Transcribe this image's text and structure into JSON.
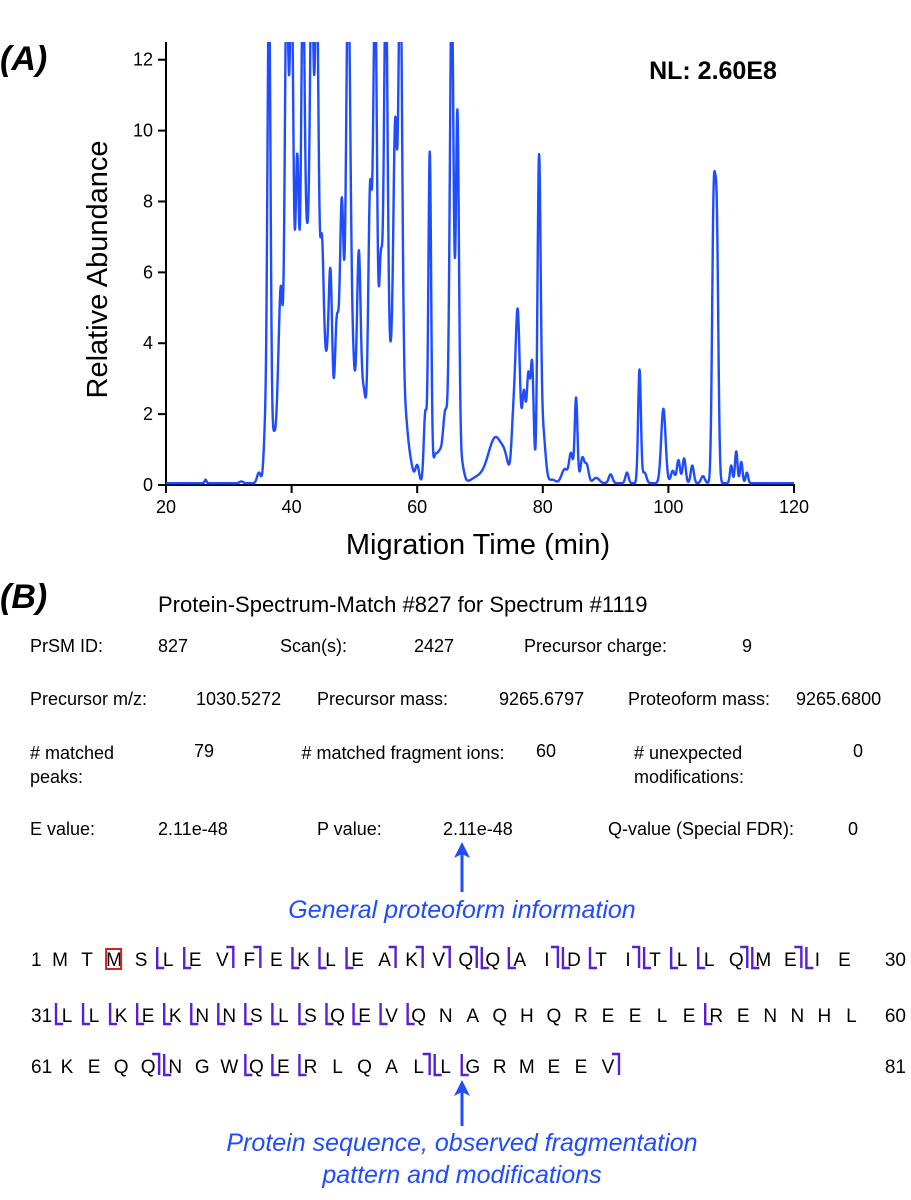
{
  "panel_a_label": "(A)",
  "panel_b_label": "(B)",
  "chart_data": {
    "type": "line",
    "title": "",
    "annotation": "NL: 2.60E8",
    "xlabel": "Migration Time (min)",
    "ylabel": "Relative Abundance",
    "xlim": [
      20,
      120
    ],
    "ylim": [
      0,
      12.5
    ],
    "xticks": [
      20,
      40,
      60,
      80,
      100,
      120
    ],
    "yticks": [
      0,
      2,
      4,
      6,
      8,
      10,
      12
    ],
    "grid": false,
    "color": "#1f4cff",
    "baseline": 0.05,
    "series": [
      {
        "name": "electropherogram",
        "peaks": [
          {
            "x": 26.3,
            "h": 0.1,
            "w": 0.15
          },
          {
            "x": 32.0,
            "h": 0.05,
            "w": 0.3
          },
          {
            "x": 34.8,
            "h": 0.3,
            "w": 0.3
          },
          {
            "x": 35.8,
            "h": 1.4,
            "w": 0.25
          },
          {
            "x": 36.4,
            "h": 14.0,
            "w": 0.25
          },
          {
            "x": 37.2,
            "h": 1.3,
            "w": 0.3
          },
          {
            "x": 37.8,
            "h": 1.6,
            "w": 0.25
          },
          {
            "x": 38.3,
            "h": 5.2,
            "w": 0.3
          },
          {
            "x": 39.2,
            "h": 14.0,
            "w": 0.3
          },
          {
            "x": 40.0,
            "h": 14.0,
            "w": 0.3
          },
          {
            "x": 40.9,
            "h": 9.0,
            "w": 0.3
          },
          {
            "x": 41.8,
            "h": 14.0,
            "w": 0.3
          },
          {
            "x": 42.5,
            "h": 5.5,
            "w": 0.3
          },
          {
            "x": 43.2,
            "h": 14.0,
            "w": 0.3
          },
          {
            "x": 44.0,
            "h": 14.0,
            "w": 0.3
          },
          {
            "x": 44.8,
            "h": 6.0,
            "w": 0.3
          },
          {
            "x": 45.5,
            "h": 3.0,
            "w": 0.4
          },
          {
            "x": 46.2,
            "h": 5.3,
            "w": 0.3
          },
          {
            "x": 47.2,
            "h": 4.5,
            "w": 0.35
          },
          {
            "x": 48.0,
            "h": 7.5,
            "w": 0.3
          },
          {
            "x": 49.0,
            "h": 14.0,
            "w": 0.35
          },
          {
            "x": 49.8,
            "h": 3.0,
            "w": 0.4
          },
          {
            "x": 50.7,
            "h": 6.0,
            "w": 0.3
          },
          {
            "x": 51.5,
            "h": 2.5,
            "w": 0.4
          },
          {
            "x": 52.5,
            "h": 8.0,
            "w": 0.3
          },
          {
            "x": 53.3,
            "h": 14.0,
            "w": 0.3
          },
          {
            "x": 54.2,
            "h": 6.0,
            "w": 0.3
          },
          {
            "x": 55.0,
            "h": 14.0,
            "w": 0.3
          },
          {
            "x": 55.8,
            "h": 3.0,
            "w": 0.35
          },
          {
            "x": 56.5,
            "h": 9.5,
            "w": 0.3
          },
          {
            "x": 57.3,
            "h": 14.0,
            "w": 0.3
          },
          {
            "x": 58.0,
            "h": 2.0,
            "w": 0.5
          },
          {
            "x": 59.0,
            "h": 0.4,
            "w": 0.4
          },
          {
            "x": 60.0,
            "h": 0.5,
            "w": 0.3
          },
          {
            "x": 61.3,
            "h": 2.0,
            "w": 0.25
          },
          {
            "x": 62.0,
            "h": 9.3,
            "w": 0.22
          },
          {
            "x": 62.8,
            "h": 0.6,
            "w": 0.3
          },
          {
            "x": 63.5,
            "h": 0.8,
            "w": 0.4
          },
          {
            "x": 64.5,
            "h": 2.0,
            "w": 0.4
          },
          {
            "x": 65.5,
            "h": 14.0,
            "w": 0.3
          },
          {
            "x": 66.4,
            "h": 10.2,
            "w": 0.25
          },
          {
            "x": 67.0,
            "h": 0.6,
            "w": 0.4
          },
          {
            "x": 69.5,
            "h": 0.15,
            "w": 1.0
          },
          {
            "x": 72.5,
            "h": 1.3,
            "w": 1.2
          },
          {
            "x": 74.0,
            "h": 0.3,
            "w": 0.5
          },
          {
            "x": 75.3,
            "h": 1.5,
            "w": 0.3
          },
          {
            "x": 76.0,
            "h": 4.8,
            "w": 0.35
          },
          {
            "x": 77.0,
            "h": 2.5,
            "w": 0.3
          },
          {
            "x": 77.7,
            "h": 2.8,
            "w": 0.25
          },
          {
            "x": 78.3,
            "h": 3.3,
            "w": 0.25
          },
          {
            "x": 79.4,
            "h": 8.8,
            "w": 0.25
          },
          {
            "x": 80.0,
            "h": 1.5,
            "w": 0.4
          },
          {
            "x": 81.5,
            "h": 0.1,
            "w": 0.5
          },
          {
            "x": 83.5,
            "h": 0.4,
            "w": 0.5
          },
          {
            "x": 84.5,
            "h": 0.8,
            "w": 0.3
          },
          {
            "x": 85.3,
            "h": 2.4,
            "w": 0.22
          },
          {
            "x": 86.3,
            "h": 0.7,
            "w": 0.3
          },
          {
            "x": 87.0,
            "h": 0.5,
            "w": 0.3
          },
          {
            "x": 88.5,
            "h": 0.15,
            "w": 0.5
          },
          {
            "x": 90.8,
            "h": 0.25,
            "w": 0.3
          },
          {
            "x": 93.4,
            "h": 0.3,
            "w": 0.25
          },
          {
            "x": 95.4,
            "h": 3.2,
            "w": 0.22
          },
          {
            "x": 96.2,
            "h": 0.3,
            "w": 0.3
          },
          {
            "x": 99.2,
            "h": 2.1,
            "w": 0.35
          },
          {
            "x": 100.7,
            "h": 0.35,
            "w": 0.3
          },
          {
            "x": 101.6,
            "h": 0.65,
            "w": 0.25
          },
          {
            "x": 102.5,
            "h": 0.7,
            "w": 0.25
          },
          {
            "x": 103.8,
            "h": 0.5,
            "w": 0.25
          },
          {
            "x": 105.5,
            "h": 0.2,
            "w": 0.3
          },
          {
            "x": 107.2,
            "h": 7.4,
            "w": 0.25
          },
          {
            "x": 107.7,
            "h": 7.0,
            "w": 0.25
          },
          {
            "x": 110.0,
            "h": 0.5,
            "w": 0.2
          },
          {
            "x": 110.8,
            "h": 0.9,
            "w": 0.2
          },
          {
            "x": 111.6,
            "h": 0.6,
            "w": 0.2
          },
          {
            "x": 112.5,
            "h": 0.3,
            "w": 0.2
          }
        ]
      }
    ]
  },
  "prsm": {
    "title": "Protein-Spectrum-Match #827 for Spectrum #1119",
    "rows": [
      [
        {
          "label": "PrSM ID:",
          "value": "827"
        },
        {
          "label": "Scan(s):",
          "value": "2427"
        },
        {
          "label": "Precursor charge:",
          "value": "9"
        }
      ],
      [
        {
          "label": "Precursor m/z:",
          "value": "1030.5272"
        },
        {
          "label": "Precursor mass:",
          "value": "9265.6797"
        },
        {
          "label": "Proteoform mass:",
          "value": "9265.6800"
        }
      ],
      [
        {
          "label": "# matched peaks:",
          "value": "79"
        },
        {
          "label": "# matched fragment ions:",
          "value": "60"
        },
        {
          "label": "# unexpected modifications:",
          "value": "0"
        }
      ],
      [
        {
          "label": "E value:",
          "value": "2.11e-48"
        },
        {
          "label": "P value:",
          "value": "2.11e-48"
        },
        {
          "label": "Q-value (Special FDR):",
          "value": "0"
        }
      ]
    ],
    "annotation_general": "General proteoform information",
    "annotation_sequence_line1": "Protein sequence, observed fragmentation",
    "annotation_sequence_line2": "pattern and modifications"
  },
  "sequence": {
    "lines": [
      {
        "start": "1",
        "end": "30",
        "residues": [
          "M",
          "T",
          "M",
          "S",
          "L",
          "E",
          "V",
          "F",
          "E",
          "K",
          "L",
          "E",
          "A",
          "K",
          "V",
          "Q",
          "Q",
          "A",
          "I",
          "D",
          "T",
          "I",
          "T",
          "L",
          "L",
          "Q",
          "M",
          "E",
          "I",
          "E"
        ]
      },
      {
        "start": "31",
        "end": "60",
        "residues": [
          "L",
          "L",
          "K",
          "E",
          "K",
          "N",
          "N",
          "S",
          "L",
          "S",
          "Q",
          "E",
          "V",
          "Q",
          "N",
          "A",
          "Q",
          "H",
          "Q",
          "R",
          "E",
          "E",
          "L",
          "E",
          "R",
          "E",
          "N",
          "N",
          "H",
          "L"
        ]
      },
      {
        "start": "61",
        "end": "81",
        "residues": [
          "K",
          "E",
          "Q",
          "Q",
          "N",
          "G",
          "W",
          "Q",
          "E",
          "R",
          "L",
          "Q",
          "A",
          "L",
          "L",
          "G",
          "R",
          "M",
          "E",
          "E",
          "V"
        ]
      }
    ],
    "colors": {
      "fragment": "#5a1fd1",
      "modification": "#d42020",
      "text": "#000000"
    }
  }
}
